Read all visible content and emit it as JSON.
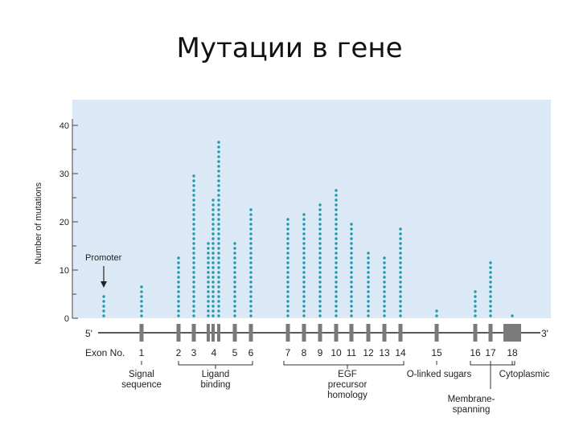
{
  "slide": {
    "title": "Мутации в гене"
  },
  "chart_data": {
    "type": "scatter",
    "title": "",
    "ylabel": "Number of mutations",
    "ylim": [
      0,
      40
    ],
    "yticks": [
      0,
      10,
      20,
      30,
      40
    ],
    "point_color": "#1b9aaa",
    "panel_color": "#dbe9f7",
    "exon_color": "#7a7a7a",
    "promoter_label": "Promoter",
    "promoter_count": 5,
    "five_prime": "5'",
    "three_prime": "3'",
    "exon_no_label": "Exon No.",
    "exons": [
      {
        "label": "1",
        "mutations": [
          7
        ]
      },
      {
        "label": "2",
        "mutations": [
          13
        ]
      },
      {
        "label": "3",
        "mutations": [
          30
        ]
      },
      {
        "label": "4",
        "mutations": [
          16,
          25,
          37
        ]
      },
      {
        "label": "5",
        "mutations": [
          16
        ]
      },
      {
        "label": "6",
        "mutations": [
          23
        ]
      },
      {
        "label": "7",
        "mutations": [
          21
        ]
      },
      {
        "label": "8",
        "mutations": [
          22
        ]
      },
      {
        "label": "9",
        "mutations": [
          24
        ]
      },
      {
        "label": "10",
        "mutations": [
          27
        ]
      },
      {
        "label": "11",
        "mutations": [
          20
        ]
      },
      {
        "label": "12",
        "mutations": [
          14
        ]
      },
      {
        "label": "13",
        "mutations": [
          13
        ]
      },
      {
        "label": "14",
        "mutations": [
          19
        ]
      },
      {
        "label": "15",
        "mutations": [
          2
        ]
      },
      {
        "label": "16",
        "mutations": [
          6
        ]
      },
      {
        "label": "17",
        "mutations": [
          12
        ]
      },
      {
        "label": "18",
        "mutations": [
          1
        ]
      }
    ],
    "domains": [
      {
        "name": "signal-sequence",
        "label": [
          "Signal",
          "sequence"
        ],
        "from": "1",
        "to": "1"
      },
      {
        "name": "ligand-binding",
        "label": [
          "Ligand",
          "binding"
        ],
        "from": "2",
        "to": "6"
      },
      {
        "name": "egf-precursor-homology",
        "label": [
          "EGF",
          "precursor",
          "homology"
        ],
        "from": "7",
        "to": "14"
      },
      {
        "name": "o-linked-sugars",
        "label": [
          "O-linked sugars"
        ],
        "from": "15",
        "to": "16"
      },
      {
        "name": "membrane-spanning",
        "label": [
          "Membrane-",
          "spanning"
        ],
        "from": "17",
        "to": "17"
      },
      {
        "name": "cytoplasmic",
        "label": [
          "Cytoplasmic"
        ],
        "from": "18",
        "to": "18"
      }
    ]
  }
}
